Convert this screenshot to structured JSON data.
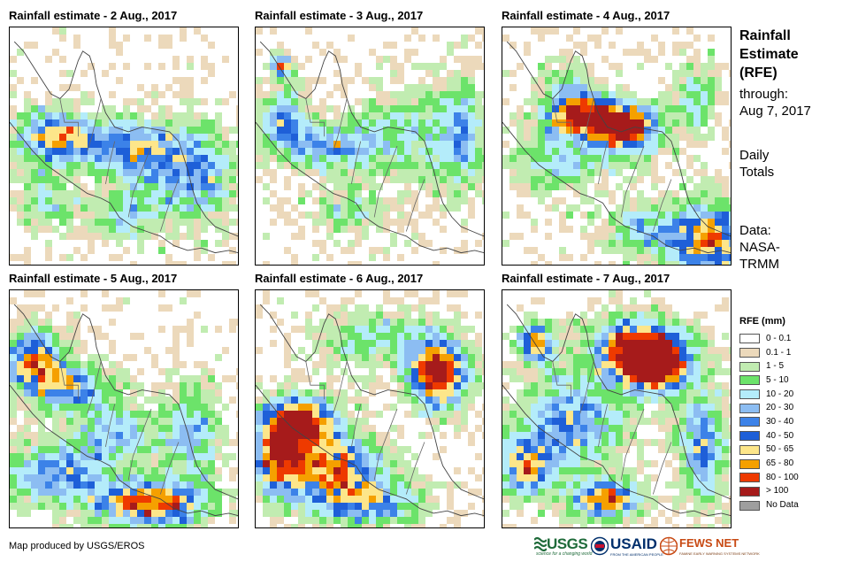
{
  "panels": [
    {
      "title": "Rainfall estimate - 2 Aug., 2017"
    },
    {
      "title": "Rainfall estimate - 3 Aug., 2017"
    },
    {
      "title": "Rainfall estimate - 4 Aug., 2017"
    },
    {
      "title": "Rainfall estimate - 5 Aug., 2017"
    },
    {
      "title": "Rainfall estimate - 6 Aug., 2017"
    },
    {
      "title": "Rainfall estimate - 7 Aug., 2017"
    }
  ],
  "sidebar": {
    "title_lines": [
      "Rainfall",
      "Estimate",
      "(RFE)"
    ],
    "through_lines": [
      "through:",
      "Aug 7, 2017"
    ],
    "type_lines": [
      "Daily",
      "Totals"
    ],
    "data_lines": [
      "Data:",
      "NASA-",
      "TRMM"
    ]
  },
  "legend": {
    "title": "RFE (mm)",
    "items": [
      {
        "label": "0 - 0.1",
        "color": "#ffffff"
      },
      {
        "label": "0.1 - 1",
        "color": "#ecd9bb"
      },
      {
        "label": "1 - 5",
        "color": "#c1ecb1"
      },
      {
        "label": "5 - 10",
        "color": "#6ce36a"
      },
      {
        "label": "10 - 20",
        "color": "#b4ecfa"
      },
      {
        "label": "20 - 30",
        "color": "#8cbdf2"
      },
      {
        "label": "30 - 40",
        "color": "#3c82e8"
      },
      {
        "label": "40 - 50",
        "color": "#1e5fd8"
      },
      {
        "label": "50 - 65",
        "color": "#fde68a"
      },
      {
        "label": "65 - 80",
        "color": "#f5a000"
      },
      {
        "label": "80 - 100",
        "color": "#ee3a00"
      },
      {
        "label": "> 100",
        "color": "#a61b1b"
      },
      {
        "label": "No Data",
        "color": "#9e9e9e"
      }
    ]
  },
  "footer": {
    "credit": "Map produced by USGS/EROS",
    "logos": {
      "usgs": "USGS",
      "usgs_tagline": "science for a changing world",
      "usaid": "USAID",
      "usaid_tagline": "FROM THE AMERICAN PEOPLE",
      "fews": "FEWS NET",
      "fews_tagline": "FAMINE EARLY WARNING SYSTEMS NETWORK"
    }
  }
}
